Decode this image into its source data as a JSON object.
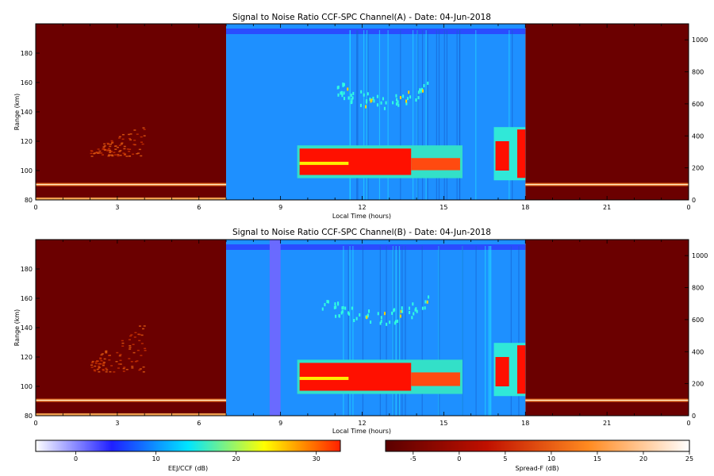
{
  "chart_data": [
    {
      "type": "heatmap",
      "title": "Signal to Noise Ratio CCF-SPC Channel(A) - Date: 04-Jun-2018",
      "xlabel": "Local Time (hours)",
      "ylabel": "Range (km)",
      "xlim": [
        0,
        24
      ],
      "ylim": [
        80,
        200
      ],
      "y2lim": [
        0,
        1100
      ],
      "x_ticks": [
        "0",
        "3",
        "6",
        "9",
        "12",
        "15",
        "18",
        "21",
        "0"
      ],
      "y_ticks": [
        "80",
        "100",
        "120",
        "140",
        "160",
        "180"
      ],
      "y2_ticks": [
        "0",
        "200",
        "400",
        "600",
        "800",
        "1000"
      ],
      "day_segment": {
        "start_hour": 7,
        "end_hour": 18,
        "colormap": "EEJ/CCF (dB)"
      },
      "night_segments": [
        {
          "start_hour": 0,
          "end_hour": 7,
          "colormap": "Spread-F (dB)"
        },
        {
          "start_hour": 18,
          "end_hour": 24,
          "colormap": "Spread-F (dB)"
        }
      ],
      "features": [
        {
          "kind": "strong echo layer",
          "start_hour": 9.7,
          "end_hour": 15.6,
          "range_km": [
            97,
            115
          ]
        },
        {
          "kind": "weak diffuse echo",
          "start_hour": 11,
          "end_hour": 14.5,
          "range_km": [
            140,
            165
          ]
        },
        {
          "kind": "echo patch",
          "start_hour": 16.9,
          "end_hour": 18,
          "range_km": [
            95,
            128
          ]
        },
        {
          "kind": "night echo plume",
          "start_hour": 2,
          "end_hour": 4,
          "range_km": [
            110,
            133
          ]
        },
        {
          "kind": "bright band",
          "start_hour": 0,
          "end_hour": 24,
          "range_km": [
            88,
            93
          ]
        }
      ]
    },
    {
      "type": "heatmap",
      "title": "Signal to Noise Ratio CCF-SPC Channel(B) - Date: 04-Jun-2018",
      "xlabel": "Local Time (hours)",
      "ylabel": "Range (km)",
      "xlim": [
        0,
        24
      ],
      "ylim": [
        80,
        200
      ],
      "y2lim": [
        0,
        1100
      ],
      "x_ticks": [
        "0",
        "3",
        "6",
        "9",
        "12",
        "15",
        "18",
        "21",
        "0"
      ],
      "y_ticks": [
        "80",
        "100",
        "120",
        "140",
        "160",
        "180"
      ],
      "y2_ticks": [
        "0",
        "200",
        "400",
        "600",
        "800",
        "1000"
      ],
      "day_segment": {
        "start_hour": 7,
        "end_hour": 18,
        "colormap": "EEJ/CCF (dB)"
      },
      "night_segments": [
        {
          "start_hour": 0,
          "end_hour": 7,
          "colormap": "Spread-F (dB)"
        },
        {
          "start_hour": 18,
          "end_hour": 24,
          "colormap": "Spread-F (dB)"
        }
      ],
      "features": [
        {
          "kind": "strong echo layer",
          "start_hour": 9.7,
          "end_hour": 15.6,
          "range_km": [
            97,
            116
          ]
        },
        {
          "kind": "weak diffuse echo",
          "start_hour": 10.5,
          "end_hour": 14.5,
          "range_km": [
            140,
            170
          ]
        },
        {
          "kind": "echo patch",
          "start_hour": 16.9,
          "end_hour": 18,
          "range_km": [
            95,
            128
          ]
        },
        {
          "kind": "data gap",
          "start_hour": 8.6,
          "end_hour": 9.0,
          "range_km": [
            80,
            200
          ]
        },
        {
          "kind": "night echo plume",
          "start_hour": 2,
          "end_hour": 4,
          "range_km": [
            110,
            145
          ]
        },
        {
          "kind": "bright band",
          "start_hour": 0,
          "end_hour": 24,
          "range_km": [
            88,
            93
          ]
        }
      ]
    }
  ],
  "colorbars": [
    {
      "label": "EEJ/CCF (dB)",
      "range": [
        -5,
        33
      ],
      "ticks": [
        "0",
        "10",
        "20",
        "30"
      ],
      "colors": [
        "#ffffff",
        "#1f1fff",
        "#00e5ff",
        "#ffff00",
        "#ff2000"
      ]
    },
    {
      "label": "Spread-F (dB)",
      "range": [
        -8,
        25
      ],
      "ticks": [
        "-5",
        "0",
        "5",
        "10",
        "15",
        "20",
        "25"
      ],
      "colors": [
        "#5a0000",
        "#c01000",
        "#ff8a20",
        "#ffffff"
      ]
    }
  ],
  "colors": {
    "night_background": "#6b0000",
    "day_background": "#1e90ff",
    "echo_strong": "#ff1000",
    "band": "#ffe9c0"
  }
}
